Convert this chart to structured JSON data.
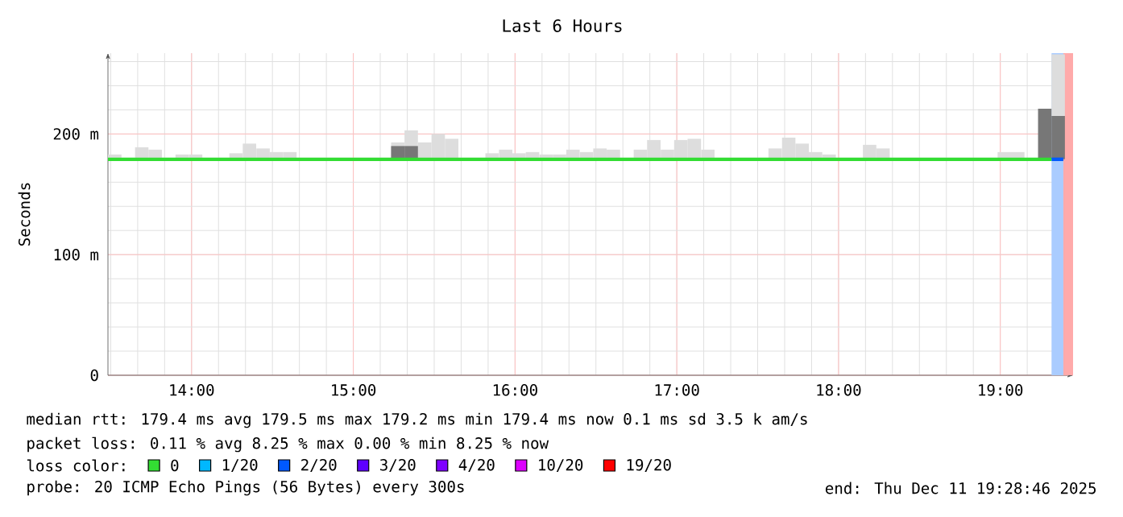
{
  "chart_data": {
    "type": "bar",
    "title": "Last 6 Hours",
    "ylabel": "Seconds",
    "legend_title": "loss color:",
    "legend": "bottom",
    "grid": true,
    "marker": "none",
    "xlim": [
      13.483,
      19.45
    ],
    "xticks": [
      {
        "value": 14,
        "label": "14:00"
      },
      {
        "value": 15,
        "label": "15:00"
      },
      {
        "value": 16,
        "label": "16:00"
      },
      {
        "value": 17,
        "label": "17:00"
      },
      {
        "value": 18,
        "label": "18:00"
      },
      {
        "value": 19,
        "label": "19:00"
      }
    ],
    "ylim": [
      0,
      267
    ],
    "yticks": [
      0,
      {
        "value": 100,
        "label": "100 m"
      },
      {
        "value": 200,
        "label": "200 m"
      }
    ],
    "bands": [
      {
        "axis": "x",
        "from": 19.317,
        "to": 19.39,
        "color": "#aaccff"
      },
      {
        "axis": "x",
        "from": 19.39,
        "to": 19.45,
        "color": "#ffaaaa"
      }
    ],
    "series": [
      {
        "color": "#dddddd",
        "x": [
          13.525,
          13.608,
          13.692,
          13.775,
          13.942,
          14.025,
          14.275,
          14.358,
          14.442,
          14.525,
          14.608,
          15.275,
          15.358,
          15.442,
          15.525,
          15.608,
          15.858,
          15.942,
          16.025,
          16.108,
          16.192,
          16.275,
          16.358,
          16.442,
          16.525,
          16.608,
          16.775,
          16.858,
          16.942,
          17.025,
          17.108,
          17.192,
          17.608,
          17.692,
          17.775,
          17.858,
          17.942,
          18.192,
          18.275,
          19.025,
          19.108,
          19.358
        ],
        "base": [
          179,
          null,
          179,
          179,
          179,
          179,
          179,
          179,
          179,
          179,
          179,
          179,
          179,
          179,
          179,
          179,
          179,
          179,
          179,
          179,
          179,
          179,
          179,
          179,
          179,
          179,
          179,
          179,
          179,
          179,
          179,
          179,
          179,
          179,
          179,
          179,
          179,
          179,
          179,
          179,
          179,
          215
        ],
        "values": [
          4,
          null,
          10,
          8,
          4,
          4,
          5,
          13,
          9,
          6,
          6,
          14,
          24,
          14,
          21,
          17,
          5,
          8,
          5,
          6,
          4,
          4,
          8,
          6,
          9,
          8,
          8,
          16,
          8,
          16,
          17,
          8,
          9,
          18,
          13,
          6,
          4,
          12,
          9,
          6,
          6,
          51
        ]
      },
      {
        "color": "#777777",
        "x": [
          15.275,
          15.358,
          19.275,
          19.358
        ],
        "base": [
          179,
          179,
          179,
          179
        ],
        "values": [
          11,
          11,
          42,
          36
        ]
      },
      {
        "type": "line",
        "name": "0",
        "color": "#33dd33",
        "x": [
          13.483,
          19.317
        ],
        "values": [
          179,
          179
        ]
      },
      {
        "type": "line",
        "name": "1/20",
        "color": "#00b8ff"
      },
      {
        "type": "line",
        "name": "2/20",
        "color": "#0059ff",
        "x": [
          19.317,
          19.39
        ],
        "values": [
          179,
          179
        ]
      },
      {
        "type": "line",
        "name": "3/20",
        "color": "#5e00ff"
      },
      {
        "type": "line",
        "name": "4/20",
        "color": "#7e00ff"
      },
      {
        "type": "line",
        "name": "10/20",
        "color": "#dd00ff"
      },
      {
        "type": "line",
        "name": "19/20",
        "color": "#ff0000"
      }
    ],
    "annotations": [
      "median rtt: 179.4 ms avg 179.5 ms max 179.2 ms min 179.4 ms now 0.1 ms sd 3.5 k am/s",
      "packet loss: 0.11 % avg 8.25 % max 0.00 % min 8.25 % now",
      "probe: 20 ICMP Echo Pings (56 Bytes) every 300s",
      "end: Thu Dec 11 19:28:46 2025"
    ]
  }
}
